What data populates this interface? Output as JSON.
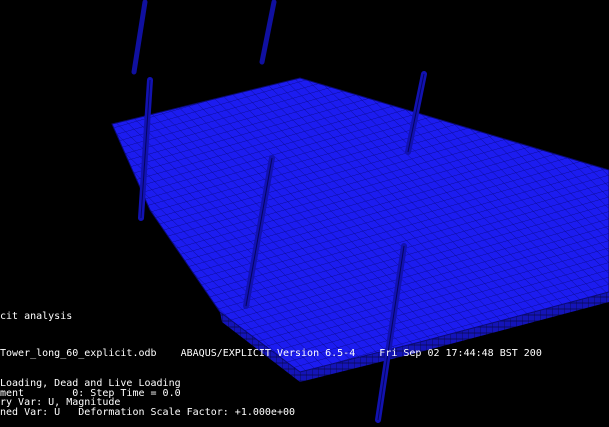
{
  "viewport_text": {
    "lines": [
      "cit analysis",
      "Tower_long_60_explicit.odb    ABAQUS/EXPLICIT Version 6.5-4    Fri Sep 02 17:44:48 BST 200",
      "Loading, Dead and Live Loading",
      "ment        0: Step Time = 0.0",
      "ry Var: U, Magnitude",
      "ned Var: U   Deformation Scale Factor: +1.000e+00"
    ]
  }
}
